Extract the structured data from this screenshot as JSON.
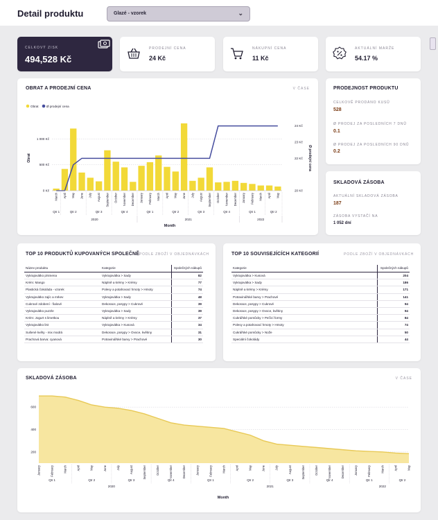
{
  "header": {
    "title": "Detail produktu",
    "product_select": "Glazé - vzorek"
  },
  "kpis": {
    "profit": {
      "label": "CELKOVÝ ZISK",
      "value": "494,528 Kč",
      "icon": "money-icon"
    },
    "sell_price": {
      "label": "PRODEJNÍ CENA",
      "value": "24 Kč",
      "icon": "basket-icon"
    },
    "buy_price": {
      "label": "NÁKUPNÍ CENA",
      "value": "11 Kč",
      "icon": "cart-icon"
    },
    "margin": {
      "label": "AKTUÁLNÍ MARŽE",
      "value": "54.17 %",
      "icon": "percent-icon"
    }
  },
  "sales_chart": {
    "title": "OBRAT A PRODEJNÍ CENA",
    "subtitle": "V ČASE",
    "legend_turnover": "Obrat",
    "legend_price": "Ø prodejní cena",
    "y_left_label": "Obrat",
    "y_right_label": "Ø prodejní cena",
    "x_label": "Month",
    "colors": {
      "bar": "#f2d938",
      "line": "#464d9e"
    }
  },
  "sellability": {
    "title": "PRODEJNOST PRODUKTU",
    "total_label": "CELKOVĚ PRODÁNO KUSŮ",
    "total_value": "528",
    "avg7_label": "Ø PRODEJ ZA POSLEDNÍCH 7 DNŮ",
    "avg7_value": "0.1",
    "avg90_label": "Ø PRODEJ ZA POSLEDNÍCH 90 DNŮ",
    "avg90_value": "0.2"
  },
  "stock_side": {
    "title": "SKLADOVÁ ZÁSOBA",
    "current_label": "AKTUÁLNÍ SKLADOVÁ ZÁSOBA",
    "current_value": "187",
    "enough_label": "ZÁSOBA VYSTAČÍ NA",
    "enough_value": "1 052 dní"
  },
  "top_products": {
    "title": "TOP 10 PRODUKTŮ KUPOVANÝCH SPOLEČNĚ",
    "subtitle": "PODLE ZBOŽÍ V OBJEDNÁVKÁCH",
    "columns": [
      "Název produktu",
      "Kategorie",
      "Společných nákupů"
    ],
    "rows": [
      [
        "Vykrajovátko písmena",
        "Vykrajovátka > Sady",
        "82"
      ],
      [
        "Krém: Mango",
        "Náplně a krémy > Krémy",
        "77"
      ],
      [
        "Plastická čokoláda - vzorek",
        "Polevy a potahovací hmoty > Hmoty",
        "74"
      ],
      [
        "Vykrajovátko zajíc a mrkev",
        "Vykrajovátka > Sady",
        "48"
      ],
      [
        "Cukrové zdobení - fialové",
        "Dekorace, posypy > Cukrové",
        "39"
      ],
      [
        "Vykrajovátko puzzle",
        "Vykrajovátka > Sady",
        "39"
      ],
      [
        "Krém: Jogurt s limetkou",
        "Náplně a krémy > Krémy",
        "37"
      ],
      [
        "Vykrajovátko list",
        "Vykrajovátka > Kusová",
        "34"
      ],
      [
        "Sušené květy - mix modrá",
        "Dekorace, posypy > Ovoce, květiny",
        "31"
      ],
      [
        "Prachová barva: cyanová",
        "Potravinářské barvy > Prachové",
        "30"
      ]
    ]
  },
  "top_categories": {
    "title": "TOP 10 SOUVISEJÍCÍCH KATEGORIÍ",
    "subtitle": "PODLE ZBOŽÍ V OBJEDNÁVKÁCH",
    "columns": [
      "Kategorie",
      "Společných nákupů"
    ],
    "rows": [
      [
        "Vykrajovátka > Kusová",
        "204"
      ],
      [
        "Vykrajovátka > Sady",
        "186"
      ],
      [
        "Náplně a krémy > Krémy",
        "171"
      ],
      [
        "Potravinářské barvy > Prachové",
        "141"
      ],
      [
        "Dekorace, posypy > Cukrové",
        "94"
      ],
      [
        "Dekorace, posypy > Ovoce, květiny",
        "94"
      ],
      [
        "Cukrářské pomůcky > Pečící formy",
        "84"
      ],
      [
        "Polevy a potahovací hmoty > Hmoty",
        "74"
      ],
      [
        "Cukrářské pomůcky > Nože",
        "50"
      ],
      [
        "Speciální čokolády",
        "44"
      ]
    ]
  },
  "stock_chart": {
    "title": "SKLADOVÁ ZÁSOBA",
    "subtitle": "V ČASE",
    "x_label": "Month",
    "colors": {
      "fill": "#f7e6a0",
      "line": "#e8c956"
    }
  },
  "chart_data": [
    {
      "type": "bar",
      "title": "OBRAT A PRODEJNÍ CENA",
      "xlabel": "Month",
      "ylabel": "Obrat",
      "y2label": "Ø prodejní cena",
      "ylim": [
        0,
        1500
      ],
      "y_ticks": [
        "0 Kč",
        "500 Kč",
        "1 000 Kč"
      ],
      "y2lim": [
        20,
        24.8
      ],
      "y2_ticks": [
        "20 Kč",
        "22 Kč",
        "23 Kč",
        "24 Kč"
      ],
      "categories": [
        "March",
        "April",
        "May",
        "June",
        "July",
        "August",
        "September",
        "October",
        "November",
        "December",
        "January",
        "February",
        "March",
        "April",
        "May",
        "June",
        "July",
        "August",
        "September",
        "October",
        "November",
        "December",
        "January",
        "February",
        "March",
        "April",
        "May"
      ],
      "quarter_labels": [
        "Qtr 1",
        "Qtr 2",
        "Qtr 3",
        "Qtr 4",
        "Qtr 1",
        "Qtr 2",
        "Qtr 3",
        "Qtr 4",
        "Qtr 1",
        "Qtr 2"
      ],
      "year_labels": [
        "2020",
        "2021",
        "2022"
      ],
      "series": [
        {
          "name": "Obrat",
          "kind": "bar",
          "values": [
            40,
            420,
            1200,
            350,
            250,
            180,
            780,
            560,
            450,
            170,
            480,
            550,
            680,
            460,
            370,
            1300,
            190,
            250,
            450,
            160,
            170,
            190,
            150,
            130,
            100,
            100,
            80
          ]
        },
        {
          "name": "Ø prodejní cena",
          "kind": "line",
          "values": [
            20,
            20,
            21.6,
            22,
            22,
            22,
            22,
            22,
            22,
            22,
            22,
            22,
            22,
            22,
            22,
            22,
            22,
            22,
            22,
            24,
            24,
            24,
            24,
            24,
            24,
            24,
            24
          ]
        }
      ]
    },
    {
      "type": "area",
      "title": "SKLADOVÁ ZÁSOBA",
      "xlabel": "Month",
      "ylim": [
        100,
        750
      ],
      "y_ticks": [
        200,
        400,
        600
      ],
      "categories": [
        "January",
        "February",
        "March",
        "April",
        "May",
        "June",
        "July",
        "August",
        "September",
        "October",
        "November",
        "December",
        "January",
        "February",
        "March",
        "April",
        "May",
        "June",
        "July",
        "August",
        "September",
        "October",
        "November",
        "December",
        "January",
        "February",
        "March",
        "April",
        "May"
      ],
      "quarter_labels": [
        "Qtr 1",
        "Qtr 2",
        "Qtr 3",
        "Qtr 4",
        "Qtr 1",
        "Qtr 2",
        "Qtr 3",
        "Qtr 4",
        "Qtr 1",
        "Qtr 2"
      ],
      "year_labels": [
        "2020",
        "2021",
        "2022"
      ],
      "series": [
        {
          "name": "Skladová zásoba",
          "values": [
            700,
            700,
            690,
            660,
            620,
            600,
            590,
            570,
            540,
            500,
            460,
            440,
            430,
            420,
            410,
            380,
            350,
            300,
            270,
            260,
            250,
            240,
            230,
            220,
            210,
            205,
            200,
            190,
            185
          ]
        }
      ]
    }
  ]
}
